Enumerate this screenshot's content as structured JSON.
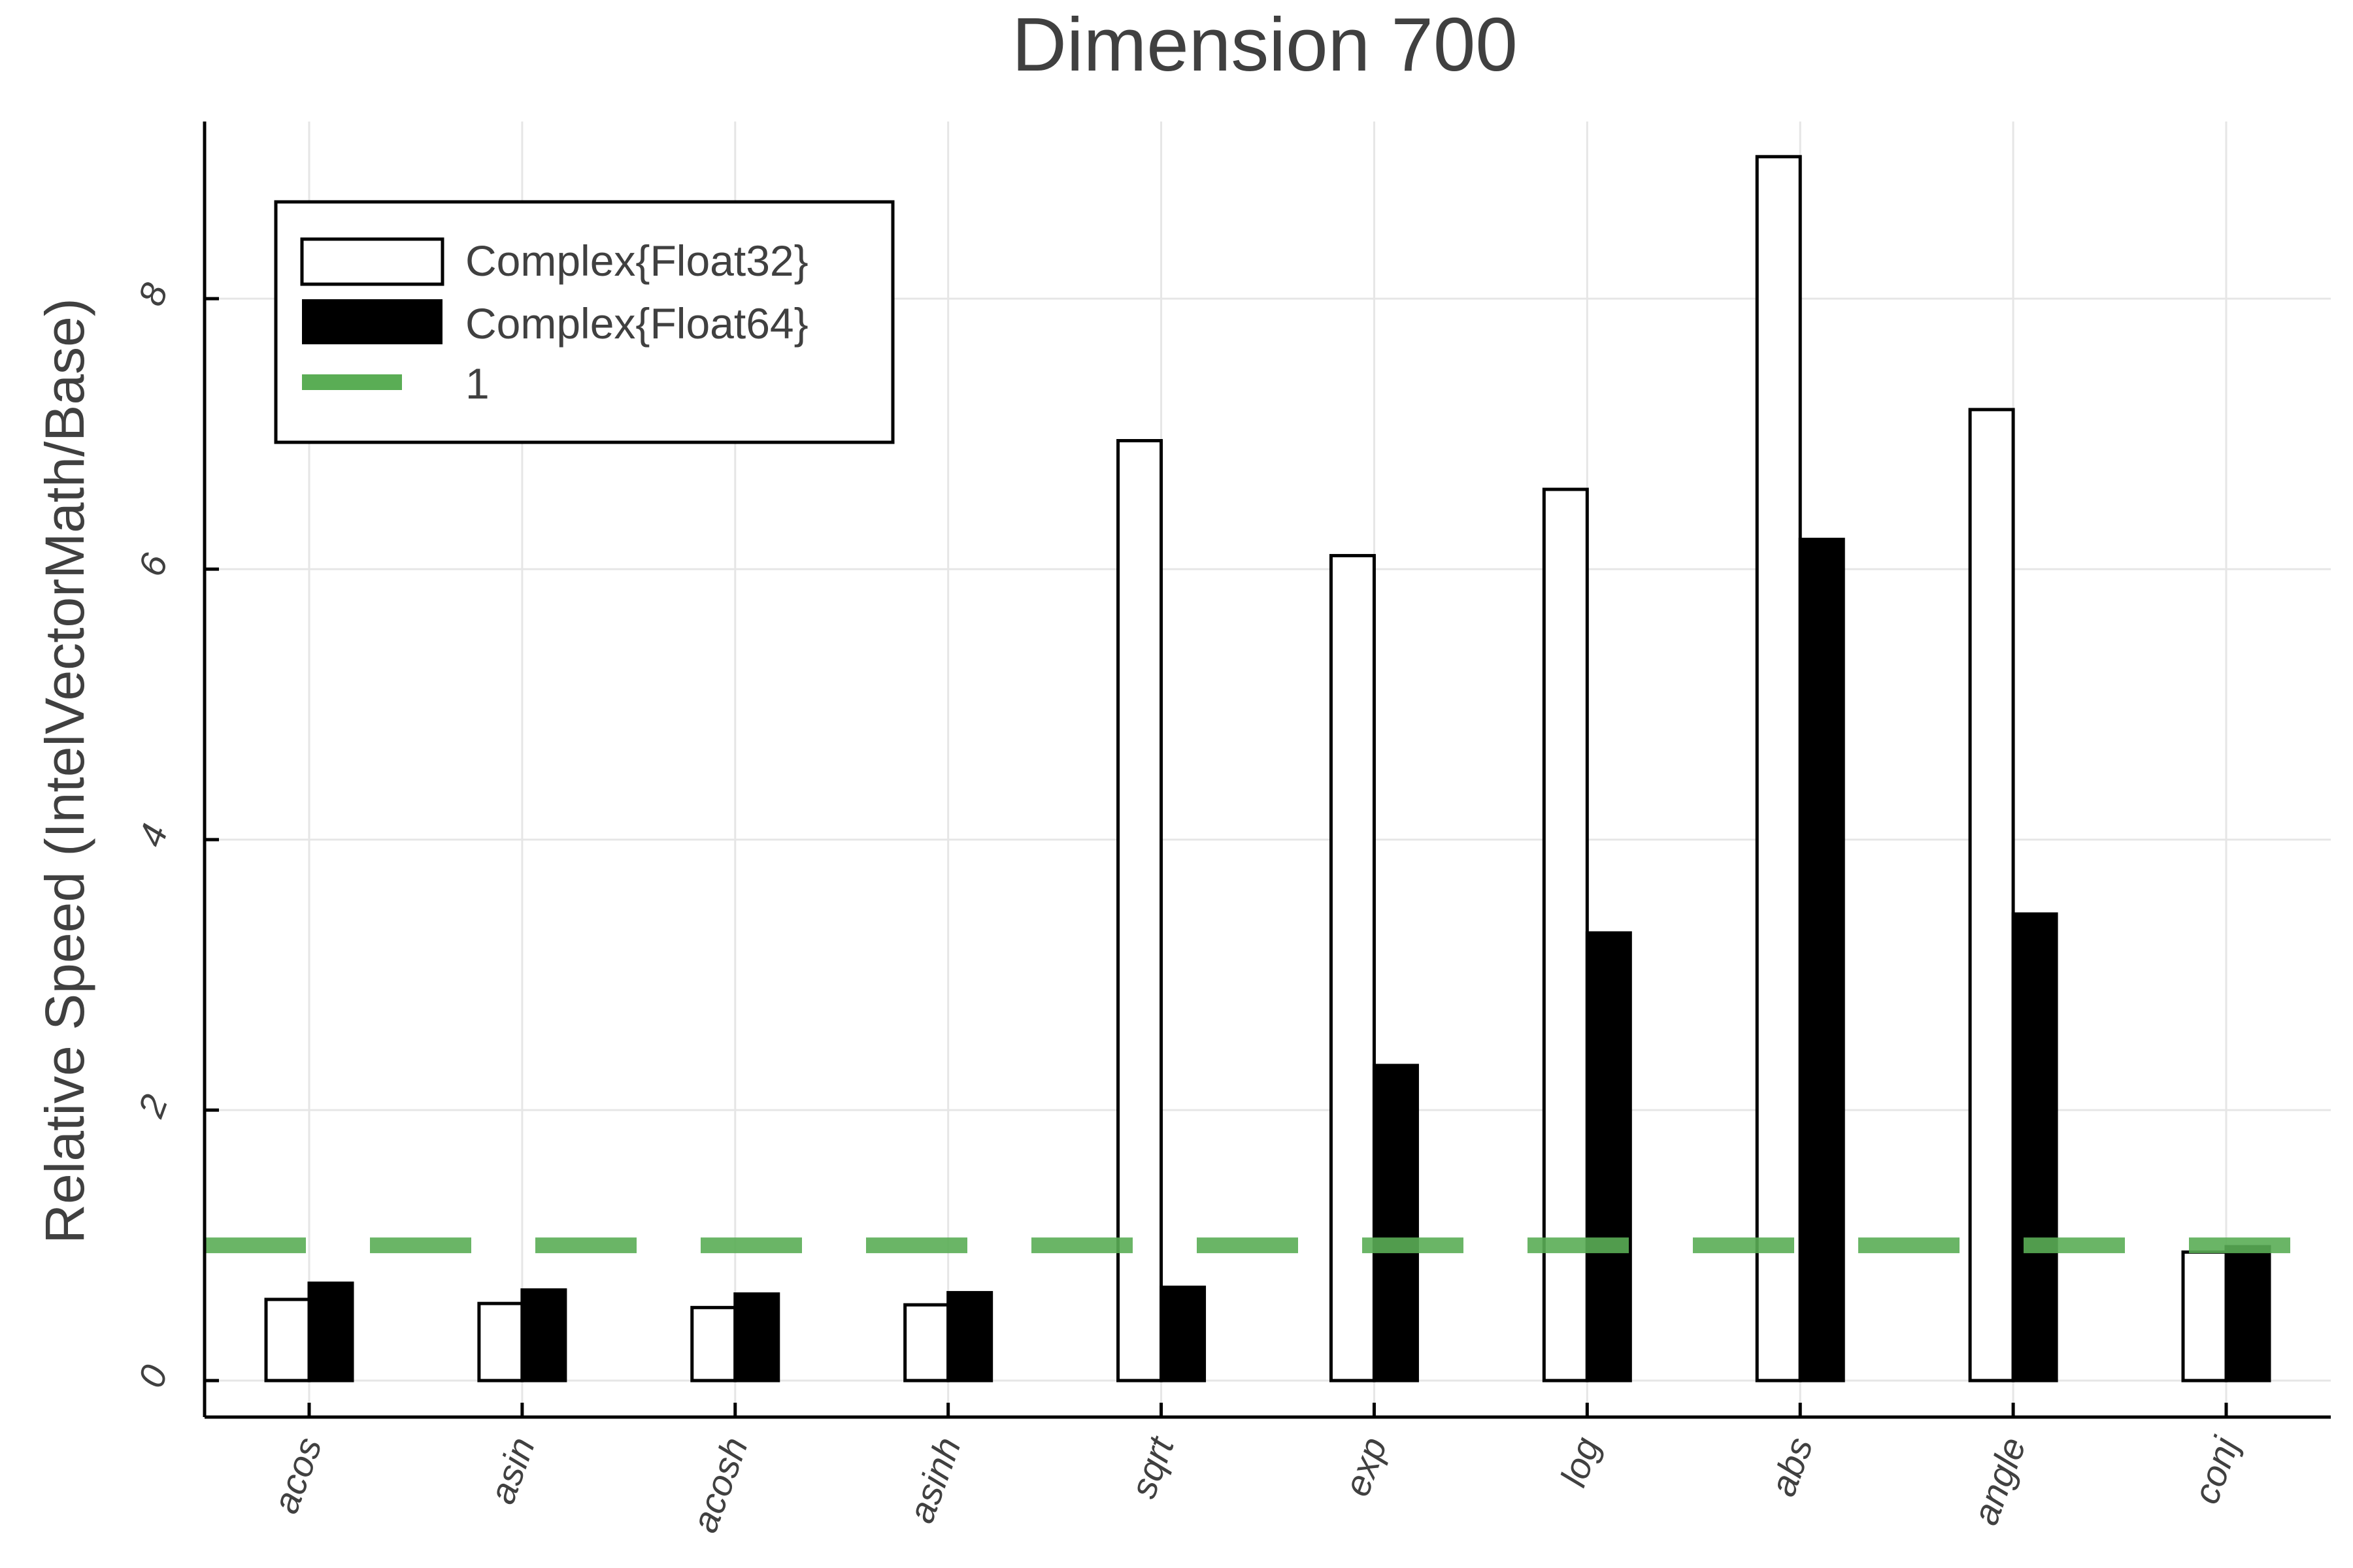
{
  "chart_data": {
    "type": "bar",
    "title": "Dimension 700",
    "xlabel": "",
    "ylabel": "Relative Speed (IntelVectorMath/Base)",
    "categories": [
      "acos",
      "asin",
      "acosh",
      "asinh",
      "sqrt",
      "exp",
      "log",
      "abs",
      "angle",
      "conj"
    ],
    "series": [
      {
        "name": "Complex{Float32}",
        "fill": "#ffffff",
        "stroke": "#000000",
        "values": [
          0.6,
          0.57,
          0.54,
          0.56,
          6.95,
          6.1,
          6.59,
          9.05,
          7.18,
          0.95
        ]
      },
      {
        "name": "Complex{Float64}",
        "fill": "#000000",
        "stroke": "#000000",
        "values": [
          0.72,
          0.67,
          0.64,
          0.65,
          0.69,
          2.33,
          3.31,
          6.22,
          3.45,
          0.99
        ]
      }
    ],
    "reference_line": {
      "name": "1",
      "y": 1,
      "color": "#5aad55",
      "style": "dashed"
    },
    "yticks": [
      0,
      2,
      4,
      6,
      8
    ],
    "ytick_labels": [
      "0",
      "2",
      "4",
      "6",
      "8"
    ],
    "ylim": [
      -0.27,
      9.31
    ],
    "grid": true,
    "legend_position": "top-left"
  }
}
